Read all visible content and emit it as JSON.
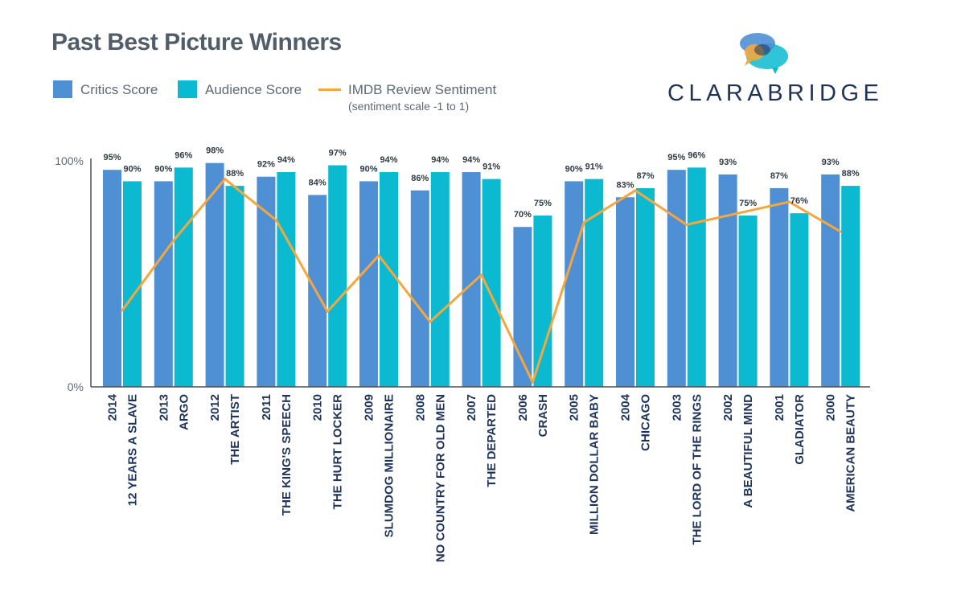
{
  "title": "Past Best Picture Winners",
  "legend": {
    "critics": "Critics Score",
    "audience": "Audience Score",
    "imdb": "IMDB Review Sentiment",
    "imdb_sub": "(sentiment scale -1 to 1)"
  },
  "logo": {
    "text": "CLARABRIDGE"
  },
  "colors": {
    "critics": "#4f8fd4",
    "audience": "#0bbad0",
    "imdb": "#f4a73e",
    "axis": "#4a4f55"
  },
  "chart_data": {
    "type": "bar",
    "title": "Past Best Picture Winners",
    "ylim": [
      0,
      100
    ],
    "y_ticks": [
      "0%",
      "100%"
    ],
    "categories": [
      {
        "year": "2014",
        "name": "12 YEARS A SLAVE"
      },
      {
        "year": "2013",
        "name": "ARGO"
      },
      {
        "year": "2012",
        "name": "THE ARTIST"
      },
      {
        "year": "2011",
        "name": "THE KING'S SPEECH"
      },
      {
        "year": "2010",
        "name": "THE HURT LOCKER"
      },
      {
        "year": "2009",
        "name": "SLUMDOG MILLIONAIRE"
      },
      {
        "year": "2008",
        "name": "NO COUNTRY FOR OLD MEN"
      },
      {
        "year": "2007",
        "name": "THE DEPARTED"
      },
      {
        "year": "2006",
        "name": "CRASH"
      },
      {
        "year": "2005",
        "name": "MILLION DOLLAR BABY"
      },
      {
        "year": "2004",
        "name": "CHICAGO"
      },
      {
        "year": "2003",
        "name": "THE LORD OF THE RINGS"
      },
      {
        "year": "2002",
        "name": "A BEAUTIFUL MIND"
      },
      {
        "year": "2001",
        "name": "GLADIATOR"
      },
      {
        "year": "2000",
        "name": "AMERICAN BEAUTY"
      }
    ],
    "series": [
      {
        "name": "Critics Score",
        "kind": "bar",
        "values": [
          95,
          90,
          98,
          92,
          84,
          90,
          86,
          94,
          70,
          90,
          83,
          95,
          93,
          87,
          93
        ],
        "labels": [
          "95%",
          "90%",
          "98%",
          "92%",
          "84%",
          "90%",
          "86%",
          "94%",
          "70%",
          "90%",
          "83%",
          "95%",
          "93%",
          "87%",
          "93%"
        ]
      },
      {
        "name": "Audience Score",
        "kind": "bar",
        "values": [
          90,
          96,
          88,
          94,
          97,
          94,
          94,
          91,
          75,
          91,
          87,
          96,
          75,
          76,
          88
        ],
        "labels": [
          "90%",
          "96%",
          "88%",
          "94%",
          "97%",
          "94%",
          "94%",
          "91%",
          "75%",
          "91%",
          "87%",
          "96%",
          "75%",
          "76%",
          "88%"
        ]
      },
      {
        "name": "IMDB Review Sentiment",
        "kind": "line",
        "scale": [
          -1,
          1
        ],
        "values": [
          -0.33,
          0.28,
          0.82,
          0.46,
          -0.34,
          0.15,
          -0.43,
          -0.02,
          -0.96,
          0.44,
          0.72,
          0.42,
          0.52,
          0.62,
          0.36
        ]
      }
    ]
  }
}
